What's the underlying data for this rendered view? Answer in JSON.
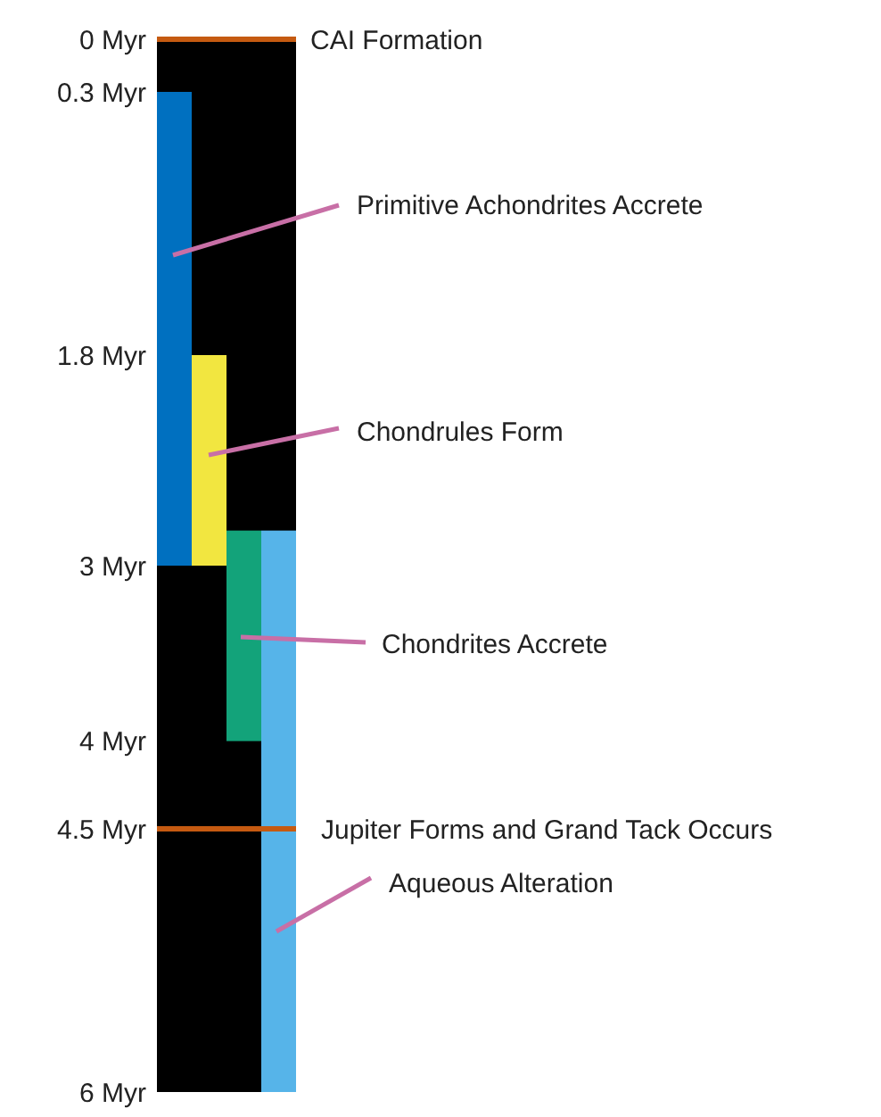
{
  "chart_data": {
    "type": "bar",
    "categories": [
      null,
      null,
      null,
      null
    ],
    "base": [
      0.3,
      1.8,
      2.8,
      2.8
    ],
    "values": [
      2.7,
      1.2,
      1.2,
      3.2
    ],
    "colors": [
      "#0070c0",
      "#f2e640",
      "#13a37a",
      "#56b4e9"
    ],
    "ylim": [
      6,
      0
    ],
    "yticks": [
      {
        "value": 0,
        "label": "0 Myr"
      },
      {
        "value": 0.3,
        "label": "0.3 Myr"
      },
      {
        "value": 1.8,
        "label": "1.8 Myr"
      },
      {
        "value": 3,
        "label": "3 Myr"
      },
      {
        "value": 4,
        "label": "4 Myr"
      },
      {
        "value": 4.5,
        "label": "4.5 Myr"
      },
      {
        "value": 6,
        "label": "6 Myr"
      }
    ],
    "tick_labels": "y",
    "grid": false,
    "ref_lines": [
      {
        "axis": "y",
        "value": 0,
        "label": "CAI Formation",
        "color": "#c55a11"
      },
      {
        "axis": "y",
        "value": 4.5,
        "label": "Jupiter Forms and Grand Tack Occurs",
        "color": "#c55a11"
      }
    ],
    "annotations": [
      "Primitive Achondrites Accrete",
      "Chondrules Form",
      "Chondrites Accrete",
      "Aqueous Alteration"
    ]
  }
}
